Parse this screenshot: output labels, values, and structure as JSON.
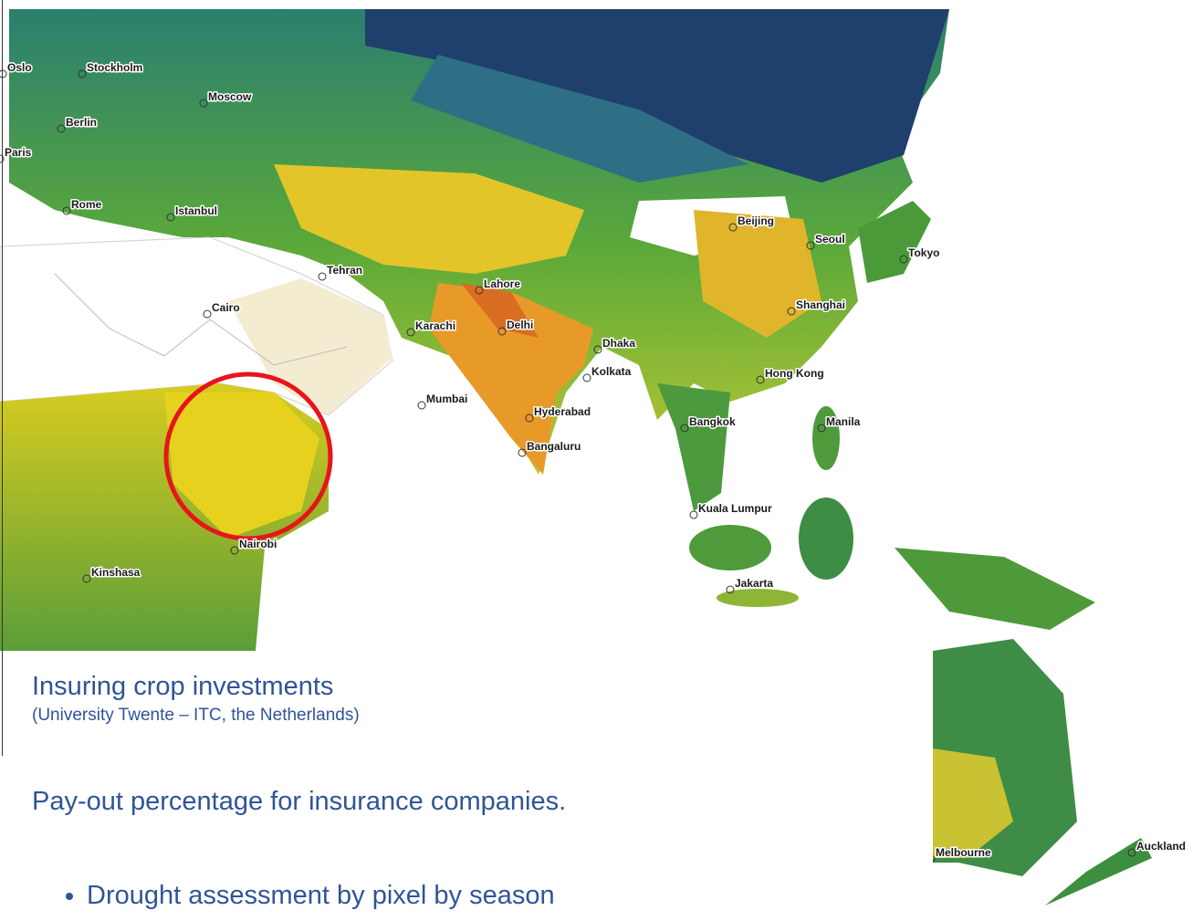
{
  "cities": [
    "Oslo",
    "Stockholm",
    "Moscow",
    "Berlin",
    "Paris",
    "Rome",
    "Istanbul",
    "Tehran",
    "Cairo",
    "Beijing",
    "Seoul",
    "Tokyo",
    "Lahore",
    "Shanghai",
    "Delhi",
    "Karachi",
    "Dhaka",
    "Kolkata",
    "Hong Kong",
    "Mumbai",
    "Hyderabad",
    "Manila",
    "Bangkok",
    "Bangaluru",
    "Kuala Lumpur",
    "Nairobi",
    "Kinshasa",
    "Jakarta",
    "Melbourne",
    "Auckland"
  ],
  "caption": {
    "title": "Insuring crop investments",
    "source": "(University Twente – ITC, the Netherlands)"
  },
  "body": {
    "text": "Pay-out percentage for insurance companies.",
    "bullets": [
      "Drought assessment by pixel by season"
    ]
  }
}
